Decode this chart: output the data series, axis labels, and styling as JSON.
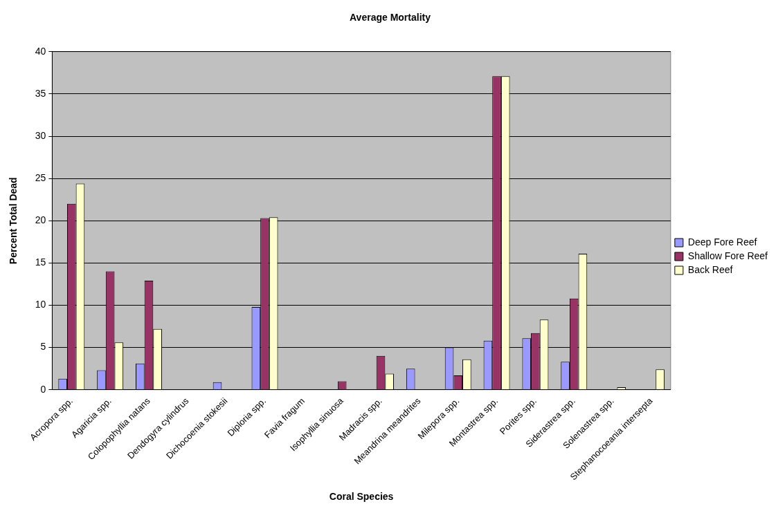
{
  "chart_data": {
    "type": "bar",
    "title": "Average Mortality",
    "xlabel": "Coral Species",
    "ylabel": "Percent Total Dead",
    "categories": [
      "Acropora spp.",
      "Agaricia spp.",
      "Colopophyllia natans",
      "Dendogyra cylindrus",
      "Dichocoenia stokesii",
      "Diploria spp.",
      "Favia fragum",
      "Isophyllia sinuosa",
      "Madracis spp.",
      "Meandrina meandrites",
      "Milepora spp.",
      "Montastrea spp.",
      "Porites spp.",
      "Siderastrea spp.",
      "Solenastrea spp.",
      "Stephanocoeania intersepta"
    ],
    "series": [
      {
        "name": "Deep Fore Reef",
        "color": "#9999ff",
        "values": [
          1.3,
          2.3,
          3.1,
          0,
          0.9,
          9.8,
          0,
          0,
          0,
          2.5,
          5.0,
          5.8,
          6.1,
          3.3,
          0,
          0
        ]
      },
      {
        "name": "Shallow Fore Reef",
        "color": "#993366",
        "values": [
          22.0,
          14.0,
          12.9,
          0,
          0,
          20.3,
          0,
          1.0,
          4.0,
          0,
          1.7,
          37.1,
          6.7,
          10.8,
          0,
          0
        ]
      },
      {
        "name": "Back Reef",
        "color": "#ffffcc",
        "values": [
          24.4,
          5.6,
          7.2,
          0,
          0,
          20.4,
          0,
          0,
          1.9,
          0,
          3.6,
          37.1,
          8.3,
          16.1,
          0.3,
          2.4
        ]
      }
    ],
    "ylim": [
      0,
      40
    ],
    "yticks": [
      0,
      5,
      10,
      15,
      20,
      25,
      30,
      35,
      40
    ],
    "grid": "y",
    "legend": "right"
  }
}
